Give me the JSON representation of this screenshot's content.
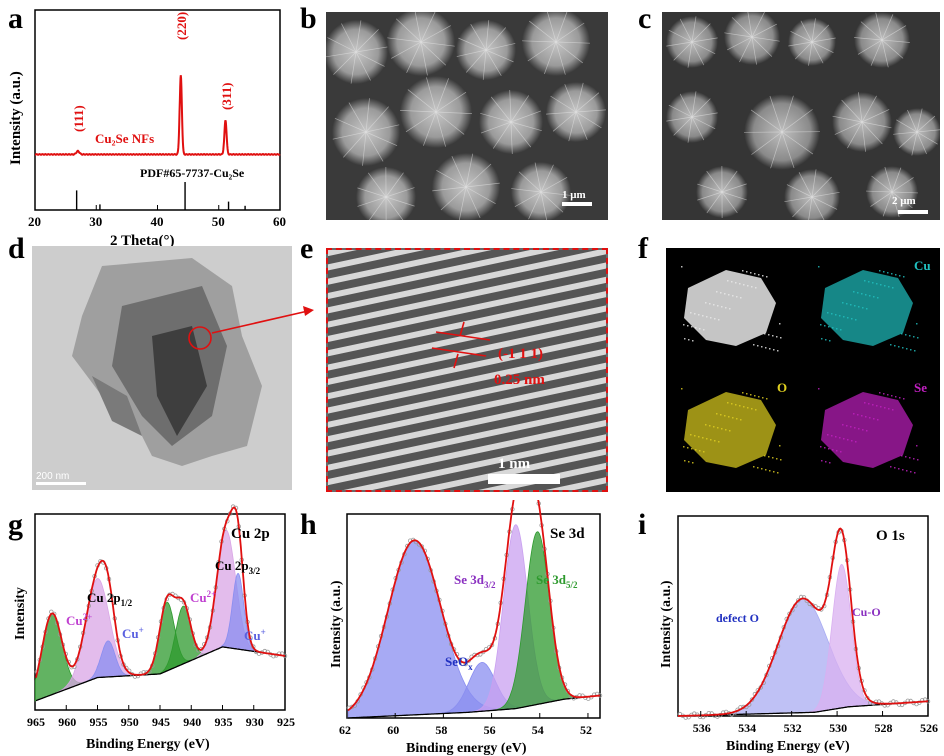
{
  "panel_labels": {
    "a": "a",
    "b": "b",
    "c": "c",
    "d": "d",
    "e": "e",
    "f": "f",
    "g": "g",
    "h": "h",
    "i": "i"
  },
  "micrographs": {
    "b": {
      "scale": "1 μm",
      "bg": "#4a4a4a"
    },
    "c": {
      "scale": "2 μm",
      "bg": "#3e3e3e"
    },
    "d": {
      "scale": "200 nm",
      "bg": "#c9c9c9"
    },
    "e": {
      "scale": "1 nm",
      "plane": "(-1 1 1)",
      "spacing": "0.25 nm",
      "accent": "#e01010"
    },
    "f": {
      "maps": [
        {
          "label": "",
          "color": "#e8e8e8"
        },
        {
          "label": "Cu",
          "color": "#20c0c0"
        },
        {
          "label": "O",
          "color": "#e0d020"
        },
        {
          "label": "Se",
          "color": "#c020c0"
        }
      ]
    }
  },
  "chart_data": [
    {
      "id": "a",
      "type": "line",
      "xlabel": "2 Theta(°)",
      "ylabel": "Intensity (a.u.)",
      "xlim": [
        20,
        60
      ],
      "xticks": [
        20,
        30,
        40,
        50,
        60
      ],
      "series": [
        {
          "name": "Cu₂Se NFs",
          "color": "#e01010",
          "x": [
            20,
            26,
            26.7,
            27.4,
            35,
            43.3,
            43.8,
            44.3,
            50.6,
            51.1,
            51.6,
            60
          ],
          "y": [
            0.58,
            0.585,
            0.62,
            0.585,
            0.585,
            0.59,
            1.42,
            0.59,
            0.59,
            0.95,
            0.59,
            0.58
          ]
        }
      ],
      "peak_labels": [
        {
          "x": 27.0,
          "text": "(111)"
        },
        {
          "x": 43.8,
          "text": "(220)"
        },
        {
          "x": 51.2,
          "text": "(311)"
        }
      ],
      "reference": {
        "name": "PDF#65-7737-Cu₂Se",
        "x": [
          26.8,
          30.6,
          44.5,
          51.6,
          54.3
        ],
        "h": [
          0.7,
          0.2,
          1.0,
          0.3,
          0.15
        ]
      },
      "label_series": "Cu₂Se NFs",
      "label_ref": "PDF#65-7737-Cu₂Se"
    },
    {
      "id": "g",
      "type": "area",
      "title": "Cu 2p",
      "xlabel": "Binding Energy (eV)",
      "ylabel": "Intensity",
      "xlim": [
        965,
        925
      ],
      "xticks": [
        965,
        960,
        955,
        950,
        945,
        940,
        935,
        930,
        925
      ],
      "annotations": {
        "p12": "Cu 2p1/2",
        "p32": "Cu 2p3/2",
        "cu2a": "Cu2+",
        "cua": "Cu+",
        "cu2b": "Cu2+",
        "cub": "Cu+"
      },
      "background": [
        [
          965,
          0.05
        ],
        [
          955,
          0.18
        ],
        [
          945,
          0.2
        ],
        [
          935,
          0.35
        ],
        [
          925,
          0.3
        ]
      ],
      "peaks": [
        {
          "center": 962.3,
          "height": 0.45,
          "width": 1.6,
          "color": "#2e9a2e"
        },
        {
          "center": 955.0,
          "height": 0.55,
          "width": 1.9,
          "color": "#d9a6e6"
        },
        {
          "center": 953.3,
          "height": 0.2,
          "width": 1.1,
          "color": "#8a8ef0"
        },
        {
          "center": 943.9,
          "height": 0.38,
          "width": 1.2,
          "color": "#2e9a2e"
        },
        {
          "center": 941.3,
          "height": 0.32,
          "width": 1.2,
          "color": "#2e9a2e"
        },
        {
          "center": 934.4,
          "height": 0.65,
          "width": 1.5,
          "color": "#d9a6e6"
        },
        {
          "center": 932.5,
          "height": 0.42,
          "width": 0.9,
          "color": "#8a8ef0"
        }
      ]
    },
    {
      "id": "h",
      "type": "area",
      "title": "Se 3d",
      "xlabel": "Binding energy (eV)",
      "ylabel": "Intensity (a.u.)",
      "xlim": [
        62,
        51.5
      ],
      "xticks": [
        62,
        60,
        58,
        56,
        54,
        52
      ],
      "annotations": {
        "seox": "SeOx",
        "d32": "Se 3d3/2",
        "d52": "Se 3d5/2"
      },
      "background": [
        [
          62,
          0.0
        ],
        [
          57,
          0.03
        ],
        [
          55,
          0.05
        ],
        [
          53,
          0.1
        ],
        [
          51.5,
          0.12
        ]
      ],
      "peaks": [
        {
          "center": 59.2,
          "height": 0.93,
          "width": 1.1,
          "color": "#8a8ef0"
        },
        {
          "center": 56.4,
          "height": 0.26,
          "width": 0.55,
          "color": "#8a8ef0"
        },
        {
          "center": 55.0,
          "height": 0.98,
          "width": 0.5,
          "color": "#c9a0f0"
        },
        {
          "center": 54.1,
          "height": 0.92,
          "width": 0.5,
          "color": "#2e9a2e"
        }
      ]
    },
    {
      "id": "i",
      "type": "area",
      "title": "O 1s",
      "xlabel": "Binding Energy (eV)",
      "ylabel": "Intensity (a.u.)",
      "xlim": [
        537,
        526
      ],
      "xticks": [
        536,
        534,
        532,
        530,
        528,
        526
      ],
      "annotations": {
        "def": "defect O",
        "cuo": "Cu-O"
      },
      "background": [
        [
          537,
          0.0
        ],
        [
          531,
          0.02
        ],
        [
          529.5,
          0.05
        ],
        [
          526,
          0.08
        ]
      ],
      "peaks": [
        {
          "center": 531.5,
          "height": 0.62,
          "width": 1.1,
          "color": "#a9acf2"
        },
        {
          "center": 529.8,
          "height": 0.78,
          "width": 0.42,
          "color": "#d9b0f0"
        }
      ]
    }
  ]
}
